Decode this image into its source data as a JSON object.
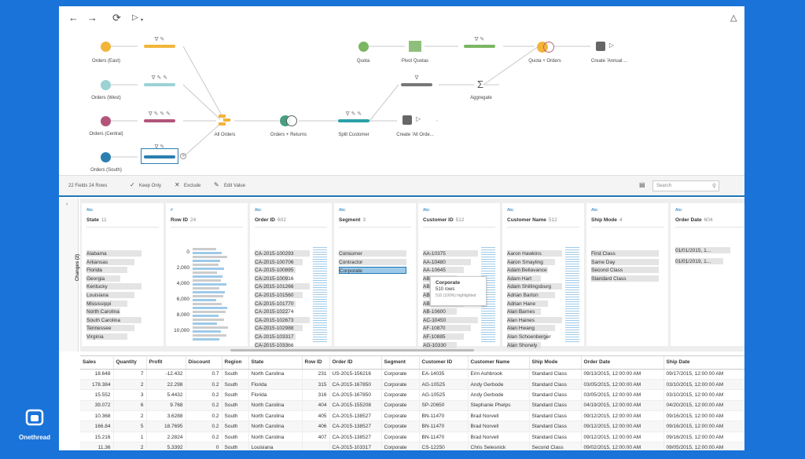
{
  "flow": {
    "nodes": [
      {
        "label": "Orders (East)"
      },
      {
        "label": "Orders (West)"
      },
      {
        "label": "Orders (Central)"
      },
      {
        "label": "Orders (South)"
      },
      {
        "label": "All Orders"
      },
      {
        "label": "Orders + Returns"
      },
      {
        "label": "Split Customer"
      },
      {
        "label": "Create 'All Orde..."
      },
      {
        "label": "Quota"
      },
      {
        "label": "Pivot Quotas"
      },
      {
        "label": "Aggregate"
      },
      {
        "label": "Quota + Orders"
      },
      {
        "label": "Create 'Annual ..."
      }
    ]
  },
  "toolbar": {
    "fields": "22 Fields  24 Rows",
    "keep_only": "Keep Only",
    "exclude": "Exclude",
    "edit_value": "Edit Value",
    "search_placeholder": "Search"
  },
  "changes_label": "Changes (2)",
  "cards": [
    {
      "type": "Abc",
      "name": "State",
      "count": "11",
      "values": [
        "Alabama",
        "Arkansas",
        "Florida",
        "Georgia",
        "Kentucky",
        "Louisiana",
        "Mississippi",
        "North Carolina",
        "South Carolina",
        "Tennessee",
        "Virginia"
      ]
    },
    {
      "type": "#",
      "name": "Row ID",
      "count": "24",
      "values": [
        "0",
        "2,000",
        "4,000",
        "6,000",
        "8,000",
        "10,000"
      ]
    },
    {
      "type": "Abc",
      "name": "Order ID",
      "count": "602",
      "values": [
        "CA-2015-100293",
        "CA-2015-100706",
        "CA-2015-100895",
        "CA-2015-100916",
        "CA-2015-101266",
        "CA-2015-101560",
        "CA-2015-101770",
        "CA-2015-102274",
        "CA-2015-102673",
        "CA-2015-102988",
        "CA-2015-103317",
        "CA-2015-103366"
      ]
    },
    {
      "type": "Abc",
      "name": "Segment",
      "count": "3",
      "values": [
        "Consumer",
        "Contractor",
        "Corporate"
      ]
    },
    {
      "type": "Abc",
      "name": "Customer ID",
      "count": "512",
      "values": [
        "AA-10375",
        "AA-10480",
        "AA-10645",
        "AB-10060",
        "AB-10105",
        "AB-10165",
        "AB-10255",
        "AB-10600",
        "AC-10450",
        "AF-10870",
        "AF-10885",
        "AG-10330"
      ]
    },
    {
      "type": "Abc",
      "name": "Customer Name",
      "count": "512",
      "values": [
        "Aaron Hawkins",
        "Aaron Smayling",
        "Adam Bellavance",
        "Adam Hart",
        "Adam Shillingsburg",
        "Adrian Barton",
        "Adrian Hane",
        "Alan Barnes",
        "Alan Haines",
        "Alan Hwang",
        "Alan Schoenberger",
        "Alan Shonely"
      ]
    },
    {
      "type": "Abc",
      "name": "Ship Mode",
      "count": "4",
      "values": [
        "First Class",
        "Same Day",
        "Second Class",
        "Standard Class"
      ]
    },
    {
      "type": "Abc",
      "name": "Order Date",
      "count": "604",
      "values": [
        "01/01/2015, 1...",
        "01/01/2019, 1..."
      ]
    }
  ],
  "tooltip": {
    "title": "Corporate",
    "rows": "510 rows",
    "highlight": "510 (100%) highlighted"
  },
  "grid": {
    "columns": [
      "Sales",
      "Quantity",
      "Profit",
      "Discount",
      "Region",
      "State",
      "Row ID",
      "Order ID",
      "Segment",
      "Customer ID",
      "Customer Name",
      "Ship Mode",
      "Order Date",
      "Ship Date"
    ],
    "rows": [
      [
        "18.648",
        "7",
        "-12.432",
        "0.7",
        "South",
        "North Carolina",
        "231",
        "US-2015-156216",
        "Corporate",
        "EA-14035",
        "Erin Ashbrook",
        "Standard Class",
        "09/13/2015, 12:00:00 AM",
        "09/17/2015, 12:00:00 AM"
      ],
      [
        "178.384",
        "2",
        "22.298",
        "0.2",
        "South",
        "Florida",
        "315",
        "CA-2015-167850",
        "Corporate",
        "AG-10525",
        "Andy Gerbode",
        "Standard Class",
        "03/05/2015, 12:00:00 AM",
        "03/10/2015, 12:00:00 AM"
      ],
      [
        "15.552",
        "3",
        "5.4432",
        "0.2",
        "South",
        "Florida",
        "316",
        "CA-2015-167850",
        "Corporate",
        "AG-10525",
        "Andy Gerbode",
        "Standard Class",
        "03/05/2015, 12:00:00 AM",
        "03/10/2015, 12:00:00 AM"
      ],
      [
        "39.072",
        "6",
        "9.768",
        "0.2",
        "South",
        "North Carolina",
        "404",
        "CA-2015-155208",
        "Corporate",
        "SP-20650",
        "Stephanie Phelps",
        "Standard Class",
        "04/19/2015, 12:00:00 AM",
        "04/20/2015, 12:00:00 AM"
      ],
      [
        "10.368",
        "2",
        "3.6288",
        "0.2",
        "South",
        "North Carolina",
        "405",
        "CA-2015-138527",
        "Corporate",
        "BN-11470",
        "Brad Norvell",
        "Standard Class",
        "09/12/2015, 12:00:00 AM",
        "09/16/2015, 12:00:00 AM"
      ],
      [
        "166.84",
        "5",
        "18.7695",
        "0.2",
        "South",
        "North Carolina",
        "406",
        "CA-2015-138527",
        "Corporate",
        "BN-11470",
        "Brad Norvell",
        "Standard Class",
        "09/12/2015, 12:00:00 AM",
        "09/16/2015, 12:00:00 AM"
      ],
      [
        "15.216",
        "1",
        "2.2824",
        "0.2",
        "South",
        "North Carolina",
        "407",
        "CA-2015-138527",
        "Corporate",
        "BN-11470",
        "Brad Norvell",
        "Standard Class",
        "09/12/2015, 12:00:00 AM",
        "09/16/2015, 12:00:00 AM"
      ],
      [
        "11.36",
        "2",
        "5.3392",
        "0",
        "South",
        "Louisiana",
        "",
        "CA-2015-103317",
        "Corporate",
        "CS-12250",
        "Chris Selesnick",
        "Second Class",
        "09/02/2015, 12:00:00 AM",
        "09/05/2015, 12:00:00 AM"
      ]
    ]
  },
  "logo": {
    "text": "Onethread"
  }
}
